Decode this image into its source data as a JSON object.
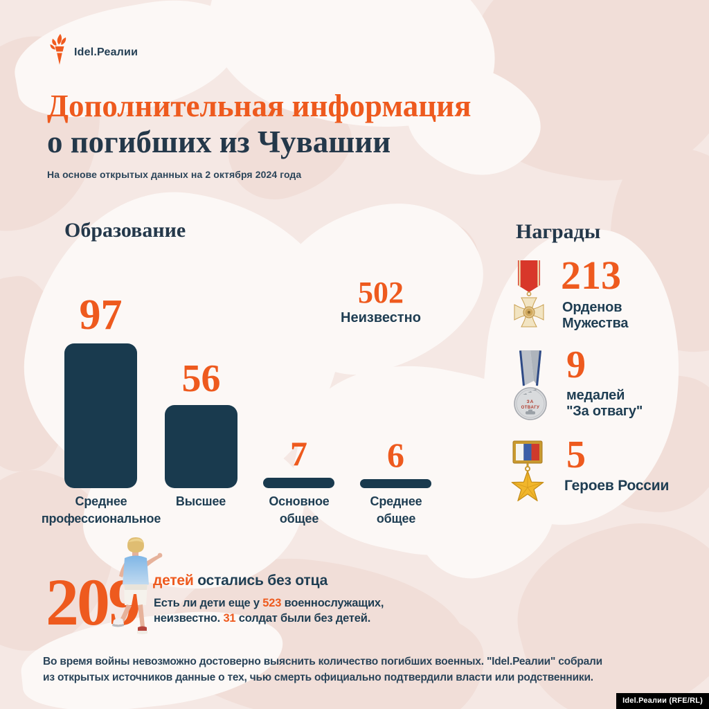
{
  "brand": {
    "logo_text": "Idel.Реалии",
    "logo_icon": "torch-icon"
  },
  "header": {
    "title_line1": "Дополнительная информация",
    "title_line2": "о погибших из Чувашии",
    "subtitle": "На основе открытых данных на 2 октября 2024 года"
  },
  "colors": {
    "accent_orange": "#EE5A1E",
    "navy_text": "#1E3D52",
    "bar_fill": "#193A4E",
    "background_base": "#F5E8E4",
    "camo_light": "#FCF8F6",
    "camo_pink": "#F1DED8",
    "badge_background": "#000000"
  },
  "chart_data": {
    "type": "bar",
    "title": "Образование",
    "categories": [
      "Среднее профессиональное",
      "Высшее",
      "Основное общее",
      "Среднее общее"
    ],
    "values": [
      97,
      56,
      7,
      6
    ],
    "category_lines": [
      [
        "Среднее",
        "профессиональное"
      ],
      [
        "Высшее",
        ""
      ],
      [
        "Основное",
        "общее"
      ],
      [
        "Среднее",
        "общее"
      ]
    ],
    "unknown_value": 502,
    "unknown_label": "Неизвестно",
    "ylim": [
      0,
      100
    ],
    "grid": false,
    "value_labels_position": "above-bars",
    "bar_color": "#193A4E",
    "value_label_color": "#EE5A1E"
  },
  "awards": {
    "title": "Награды",
    "items": [
      {
        "icon": "order-of-courage-medal-icon",
        "value": 213,
        "label_line1": "Орденов",
        "label_line2": "Мужества"
      },
      {
        "icon": "za-otvagu-medal-icon",
        "value": 9,
        "label_line1": "медалей",
        "label_line2": "\"За отвагу\""
      },
      {
        "icon": "hero-of-russia-star-icon",
        "value": 5,
        "label_line1": "Героев России",
        "label_line2": ""
      }
    ]
  },
  "children": {
    "count": 209,
    "highlight": "детей",
    "headline_rest": " остались без отца",
    "note_prefix1": "Есть ли дети еще у ",
    "note_value1": 523,
    "note_suffix1": " военнослужащих,",
    "note_prefix2": "неизвестно. ",
    "note_value2": 31,
    "note_suffix2": " солдат были без детей.",
    "photo": "running-child-photo"
  },
  "footer": {
    "line1": "Во время войны невозможно достоверно выяснить количество погибших военных. \"Idel.Реалии\" собрали",
    "line2": "из открытых источников данные о тех, чью смерть официально подтвердили власти или родственники.",
    "badge": "Idel.Реалии (RFE/RL)"
  }
}
